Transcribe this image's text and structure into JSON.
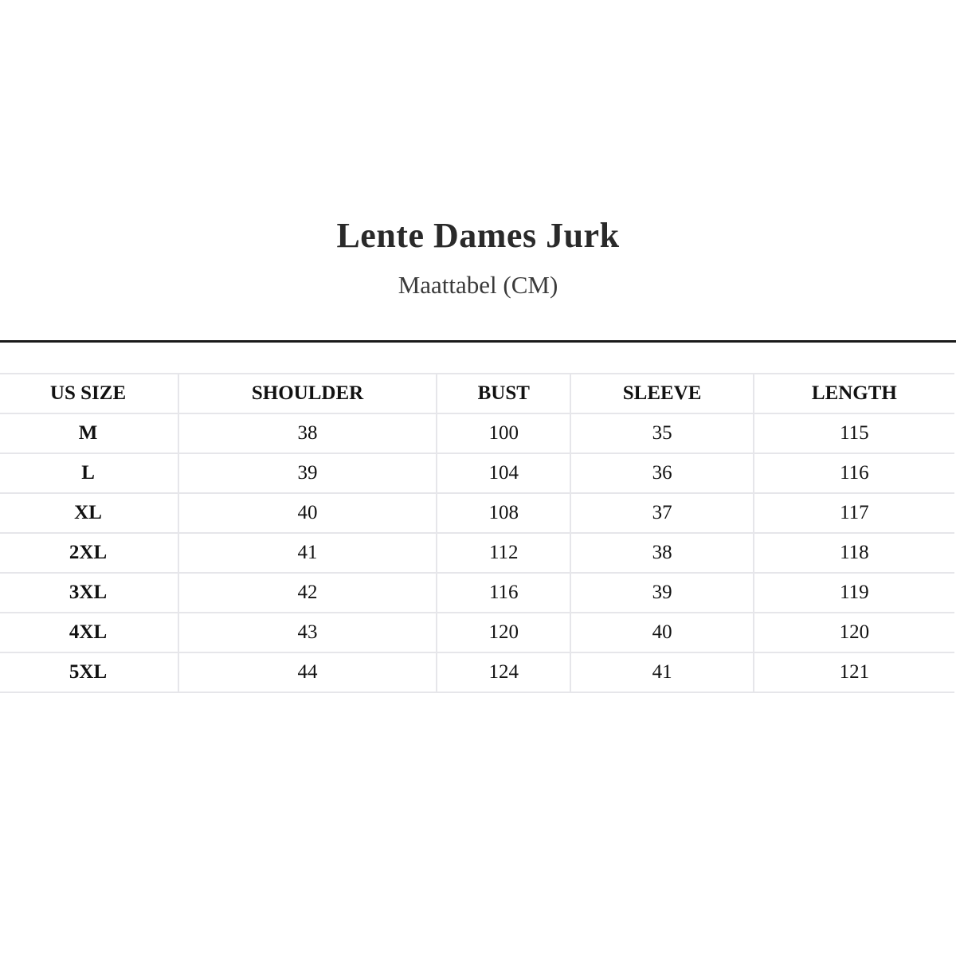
{
  "title": "Lente Dames Jurk",
  "subtitle": "Maattabel (CM)",
  "table": {
    "headers": [
      "US SIZE",
      "SHOULDER",
      "BUST",
      "SLEEVE",
      "LENGTH"
    ],
    "rows": [
      [
        "M",
        "38",
        "100",
        "35",
        "115"
      ],
      [
        "L",
        "39",
        "104",
        "36",
        "116"
      ],
      [
        "XL",
        "40",
        "108",
        "37",
        "117"
      ],
      [
        "2XL",
        "41",
        "112",
        "38",
        "118"
      ],
      [
        "3XL",
        "42",
        "116",
        "39",
        "119"
      ],
      [
        "4XL",
        "43",
        "120",
        "40",
        "120"
      ],
      [
        "5XL",
        "44",
        "124",
        "41",
        "121"
      ]
    ]
  }
}
